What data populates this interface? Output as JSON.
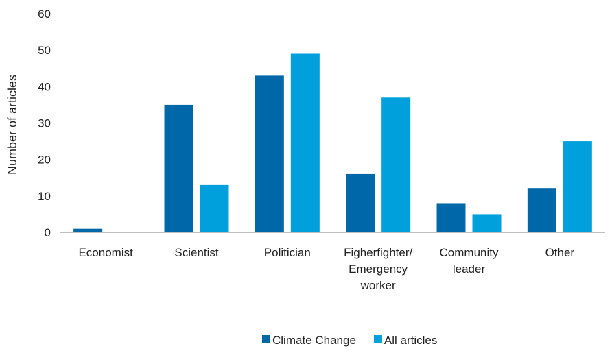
{
  "chart_data": {
    "type": "bar",
    "title": "",
    "xlabel": "",
    "ylabel": "Number of articles",
    "ylim": [
      0,
      60
    ],
    "yticks": [
      0,
      10,
      20,
      30,
      40,
      50,
      60
    ],
    "grid": false,
    "legend_position": "bottom",
    "categories": [
      [
        "Economist"
      ],
      [
        "Scientist"
      ],
      [
        "Politician"
      ],
      [
        "Figherfighter/",
        "Emergency",
        "worker"
      ],
      [
        "Community",
        "leader"
      ],
      [
        "Other"
      ]
    ],
    "series": [
      {
        "name": "Climate Change",
        "color": "#0068a8",
        "values": [
          1,
          35,
          43,
          16,
          8,
          12
        ]
      },
      {
        "name": "All articles",
        "color": "#00a0dc",
        "values": [
          0,
          13,
          49,
          37,
          5,
          25
        ]
      }
    ]
  }
}
